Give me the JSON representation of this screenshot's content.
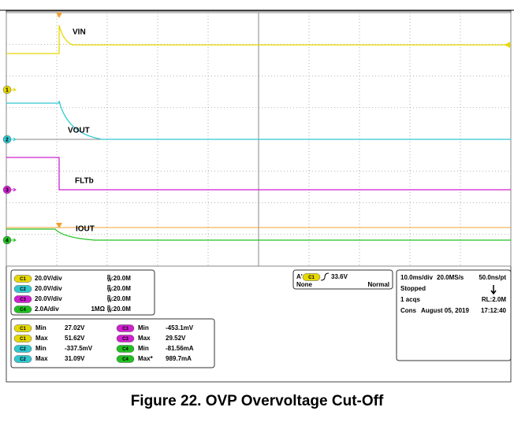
{
  "traces": [
    {
      "label": "VIN"
    },
    {
      "label": "VOUT"
    },
    {
      "label": "FLTb"
    },
    {
      "label": "IOUT"
    }
  ],
  "markers": [
    "1",
    "2",
    "3",
    "4"
  ],
  "channels": [
    {
      "badge": "C1",
      "scale": "20.0V/div",
      "bw_symbol": "B",
      "bw_sub": "W",
      "bw": ":20.0M"
    },
    {
      "badge": "C2",
      "scale": "20.0V/div",
      "bw_symbol": "B",
      "bw_sub": "W",
      "bw": ":20.0M"
    },
    {
      "badge": "C3",
      "scale": "20.0V/div",
      "bw_symbol": "B",
      "bw_sub": "W",
      "bw": ":20.0M"
    },
    {
      "badge": "C4",
      "scale": "2.0A/div",
      "impedance": "1MΩ",
      "bw_symbol": "B",
      "bw_sub": "W",
      "bw": ":20.0M"
    }
  ],
  "measurements": [
    [
      {
        "badge": "C1",
        "name": "Min",
        "value": "27.02V"
      },
      {
        "badge": "C3",
        "name": "Min",
        "value": "-453.1mV"
      }
    ],
    [
      {
        "badge": "C1",
        "name": "Max",
        "value": "51.62V"
      },
      {
        "badge": "C3",
        "name": "Max",
        "value": "29.52V"
      }
    ],
    [
      {
        "badge": "C2",
        "name": "Min",
        "value": "-337.5mV"
      },
      {
        "badge": "C4",
        "name": "Min",
        "value": "-81.56mA"
      }
    ],
    [
      {
        "badge": "C2",
        "name": "Max",
        "value": "31.09V"
      },
      {
        "badge": "C4",
        "name": "Max*",
        "value": "989.7mA"
      }
    ]
  ],
  "trigger": {
    "source": "A'",
    "badge": "C1",
    "level": "33.6V",
    "mode": "None",
    "sweep": "Normal"
  },
  "acquisition": {
    "timebase": "10.0ms/div",
    "rate": "20.0MS/s",
    "resolution": "50.0ns/pt",
    "state": "Stopped",
    "acqs": "1 acqs",
    "record": "RL:2.0M",
    "cons": "Cons",
    "date": "August 05, 2019",
    "time": "17:12:40"
  },
  "caption": "Figure 22. OVP Overvoltage Cut-Off"
}
